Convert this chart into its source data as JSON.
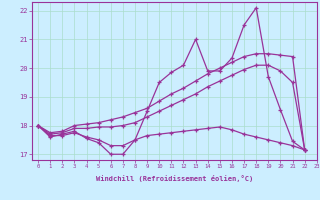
{
  "background_color": "#cceeff",
  "grid_color": "#aaddcc",
  "line_color": "#993399",
  "xlabel": "Windchill (Refroidissement éolien,°C)",
  "xlim": [
    -0.5,
    23
  ],
  "ylim": [
    16.8,
    22.3
  ],
  "yticks": [
    17,
    18,
    19,
    20,
    21,
    22
  ],
  "xticks": [
    0,
    1,
    2,
    3,
    4,
    5,
    6,
    7,
    8,
    9,
    10,
    11,
    12,
    13,
    14,
    15,
    16,
    17,
    18,
    19,
    20,
    21,
    22,
    23
  ],
  "series": [
    [
      18.0,
      17.6,
      17.7,
      17.8,
      17.55,
      17.4,
      17.0,
      17.0,
      17.5,
      18.5,
      19.5,
      19.85,
      20.1,
      21.0,
      19.9,
      19.9,
      20.35,
      21.5,
      22.1,
      19.7,
      18.55,
      17.45,
      17.15
    ],
    [
      18.0,
      17.75,
      17.8,
      18.0,
      18.05,
      18.1,
      18.2,
      18.3,
      18.45,
      18.6,
      18.85,
      19.1,
      19.3,
      19.55,
      19.8,
      20.0,
      20.2,
      20.4,
      20.5,
      20.5,
      20.45,
      20.4,
      17.15
    ],
    [
      18.0,
      17.7,
      17.75,
      17.9,
      17.9,
      17.95,
      17.95,
      18.0,
      18.1,
      18.3,
      18.5,
      18.7,
      18.9,
      19.1,
      19.35,
      19.55,
      19.75,
      19.95,
      20.1,
      20.1,
      19.9,
      19.5,
      17.15
    ],
    [
      18.0,
      17.65,
      17.65,
      17.75,
      17.6,
      17.5,
      17.3,
      17.3,
      17.5,
      17.65,
      17.7,
      17.75,
      17.8,
      17.85,
      17.9,
      17.95,
      17.85,
      17.7,
      17.6,
      17.5,
      17.4,
      17.3,
      17.15
    ]
  ]
}
